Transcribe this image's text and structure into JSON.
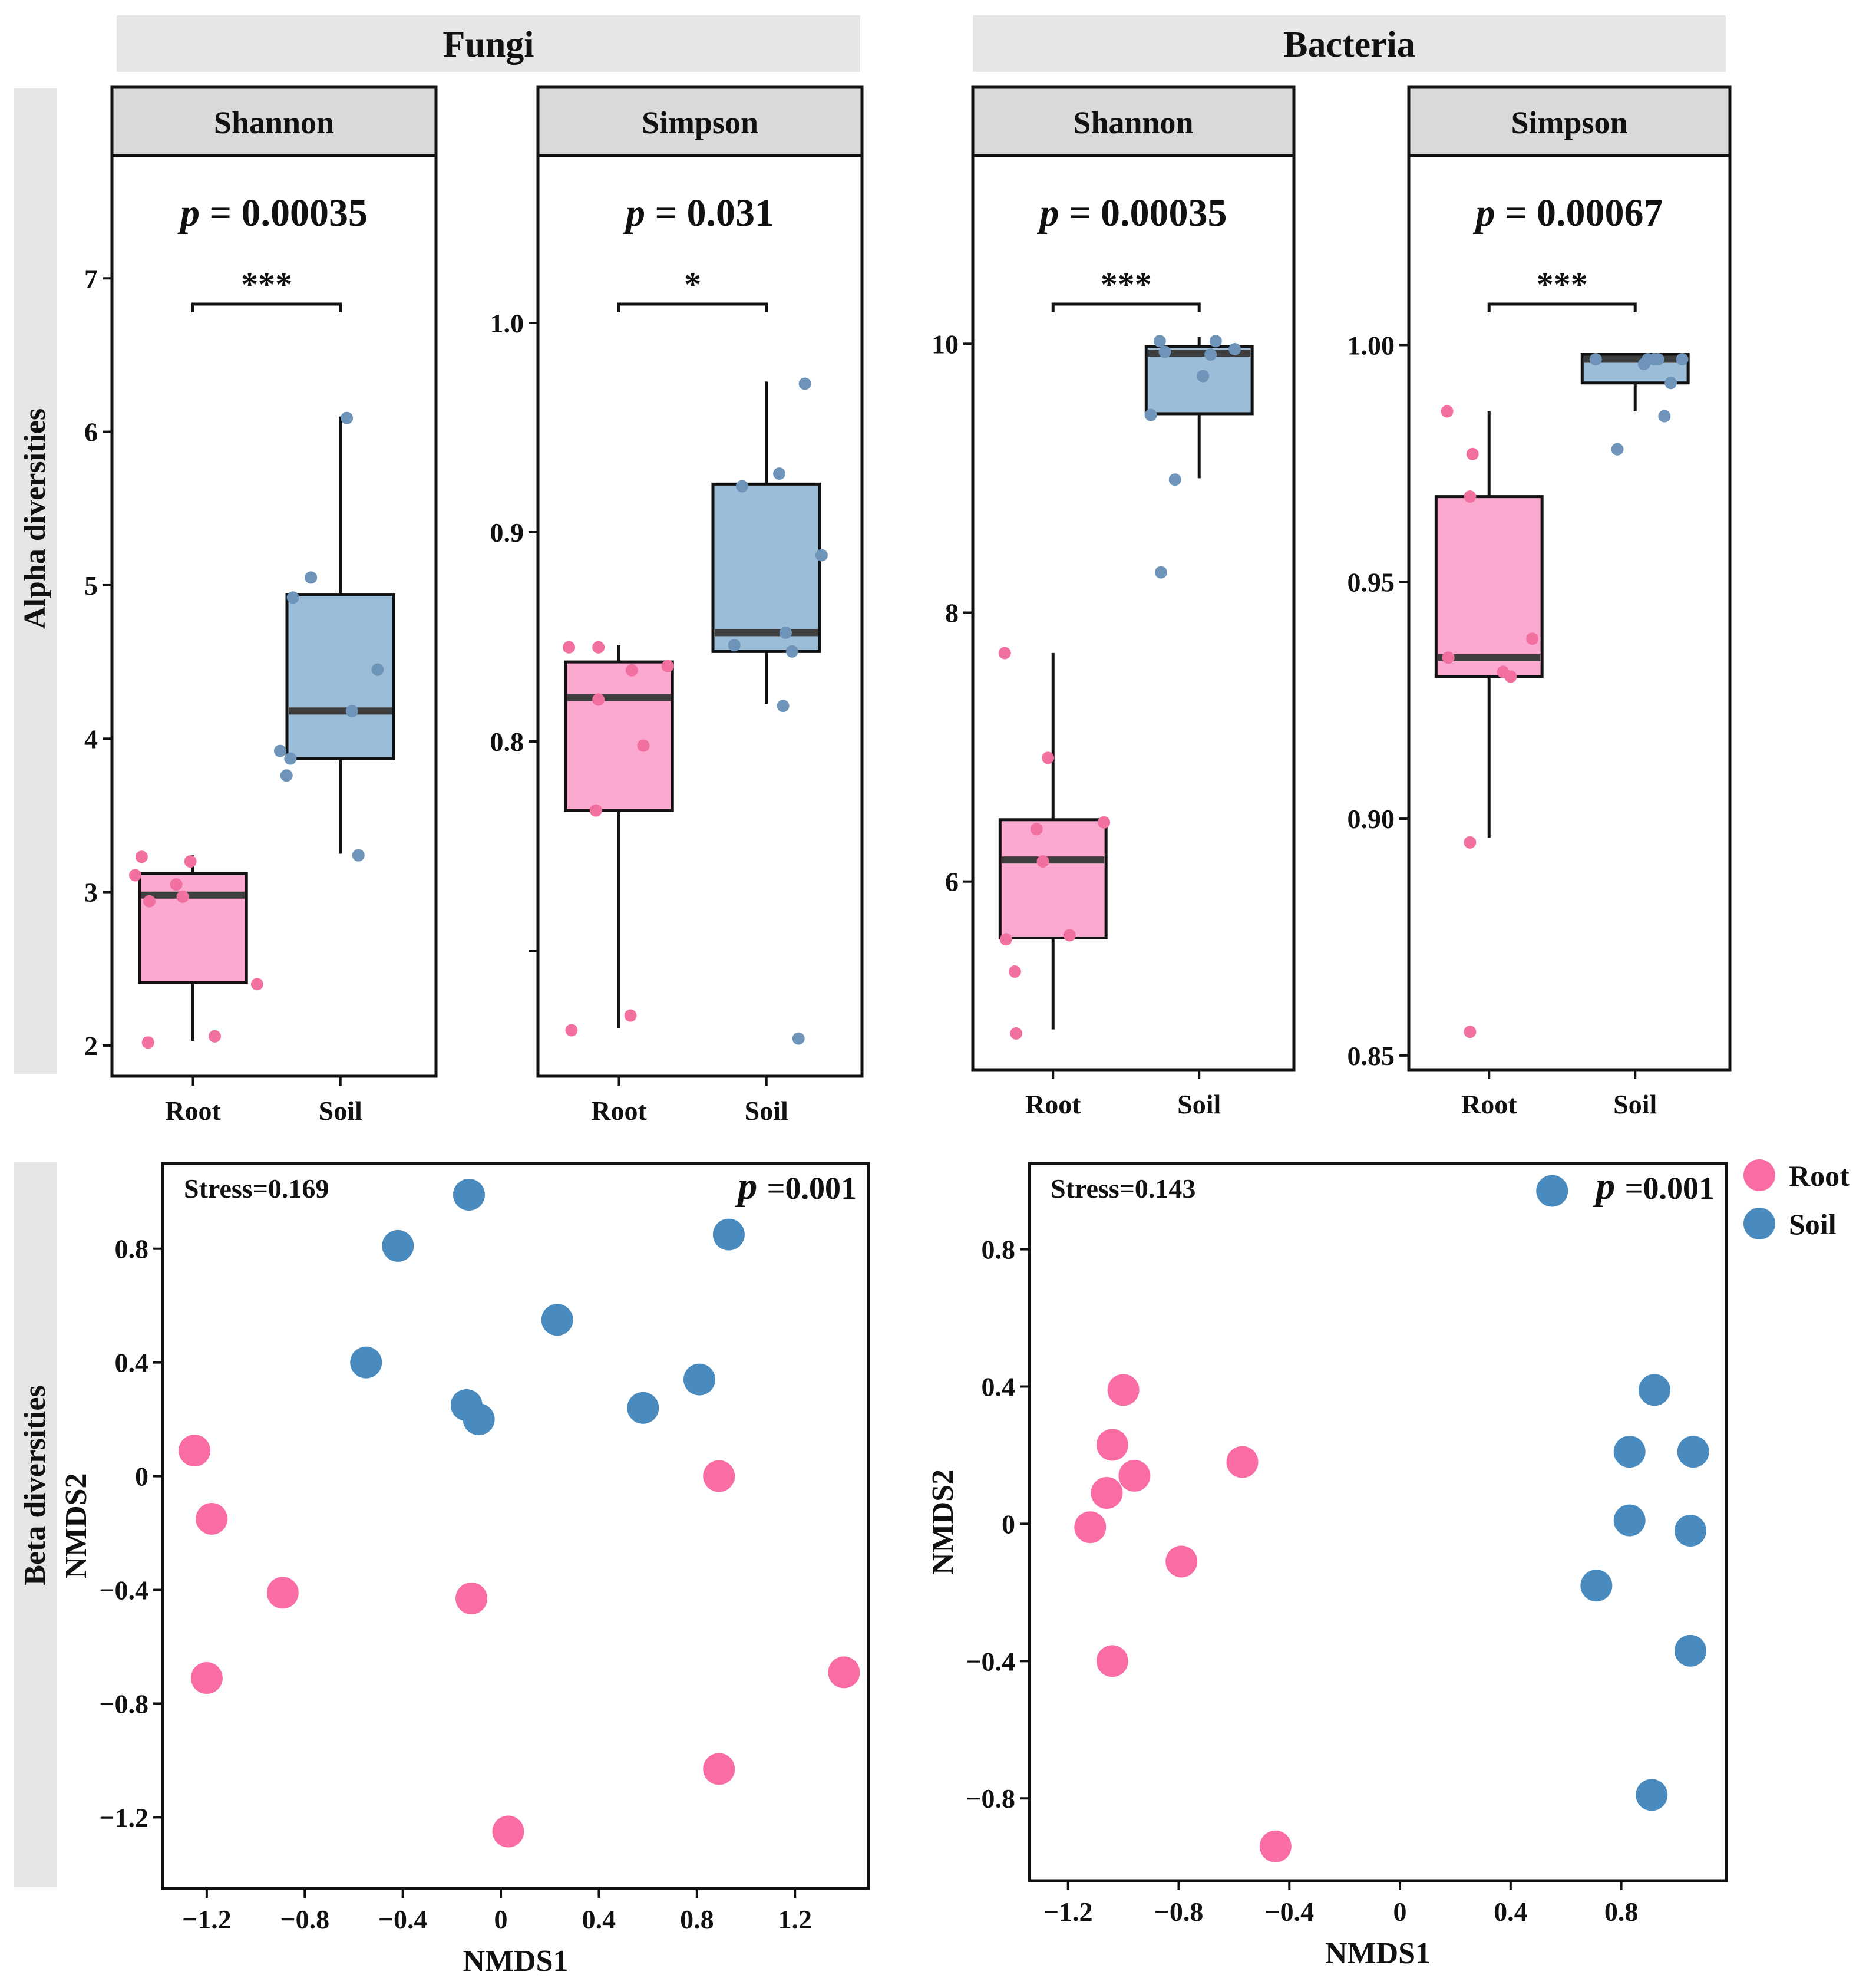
{
  "colors": {
    "root_fill": "#fba9d0",
    "soil_fill": "#9bbdd8",
    "root_point": "#f2709f",
    "soil_point": "#6e95b9",
    "root_nmds": "#f96ca4",
    "soil_nmds": "#4a8bbf",
    "strip_bg": "#e6e6e6",
    "facet_bg": "#d9d9d9",
    "median": "#3e3e3e"
  },
  "groups": {
    "fungi": "Fungi",
    "bacteria": "Bacteria"
  },
  "row_labels": {
    "alpha": "Alpha diversities",
    "beta": "Beta diversities"
  },
  "legend": {
    "root": "Root",
    "soil": "Soil"
  },
  "chart_data": [
    {
      "type": "box",
      "group": "Fungi",
      "facet": "Shannon",
      "pvalue_label": "p",
      "pvalue": "= 0.00035",
      "significance": "***",
      "categories": [
        "Root",
        "Soil"
      ],
      "ylim": [
        1.8,
        7.8
      ],
      "yticks": [
        2,
        3,
        4,
        5,
        6,
        7
      ],
      "yticklabels": [
        "2",
        "3",
        "4",
        "5",
        "6",
        "7"
      ],
      "boxes": [
        {
          "name": "Root",
          "q1": 2.41,
          "median": 2.98,
          "q3": 3.12,
          "whislo": 2.03,
          "whishi": 3.24,
          "points": [
            [
              -0.4,
              3.23
            ],
            [
              -0.45,
              3.11
            ],
            [
              -0.34,
              2.94
            ],
            [
              -0.13,
              3.05
            ],
            [
              -0.08,
              2.97
            ],
            [
              -0.02,
              3.2
            ],
            [
              0.5,
              2.4
            ],
            [
              -0.35,
              2.02
            ],
            [
              0.17,
              2.06
            ]
          ]
        },
        {
          "name": "Soil",
          "q1": 3.87,
          "median": 4.18,
          "q3": 4.94,
          "whislo": 3.25,
          "whishi": 6.1,
          "points": [
            [
              0.05,
              6.09
            ],
            [
              -0.37,
              4.92
            ],
            [
              -0.23,
              5.05
            ],
            [
              0.29,
              4.45
            ],
            [
              0.09,
              4.18
            ],
            [
              -0.47,
              3.92
            ],
            [
              -0.39,
              3.87
            ],
            [
              -0.42,
              3.76
            ],
            [
              0.14,
              3.24
            ]
          ]
        }
      ]
    },
    {
      "type": "box",
      "group": "Fungi",
      "facet": "Simpson",
      "pvalue_label": "p",
      "pvalue": "= 0.031",
      "significance": "*",
      "categories": [
        "Root",
        "Soil"
      ],
      "ylim": [
        0.64,
        1.08
      ],
      "yticks": [
        0.7,
        0.8,
        0.9,
        1.0
      ],
      "yticklabels": [
        "",
        "0.8",
        "0.9",
        "1.0"
      ],
      "boxes": [
        {
          "name": "Root",
          "q1": 0.767,
          "median": 0.821,
          "q3": 0.838,
          "whislo": 0.663,
          "whishi": 0.846,
          "points": [
            [
              -0.39,
              0.845
            ],
            [
              -0.16,
              0.845
            ],
            [
              0.1,
              0.834
            ],
            [
              0.38,
              0.836
            ],
            [
              -0.16,
              0.82
            ],
            [
              0.19,
              0.798
            ],
            [
              -0.18,
              0.767
            ],
            [
              -0.37,
              0.662
            ],
            [
              0.09,
              0.669
            ]
          ]
        },
        {
          "name": "Soil",
          "q1": 0.843,
          "median": 0.852,
          "q3": 0.923,
          "whislo": 0.818,
          "whishi": 0.972,
          "points": [
            [
              0.3,
              0.971
            ],
            [
              0.1,
              0.928
            ],
            [
              -0.19,
              0.922
            ],
            [
              0.43,
              0.889
            ],
            [
              0.15,
              0.852
            ],
            [
              -0.25,
              0.846
            ],
            [
              0.2,
              0.843
            ],
            [
              0.13,
              0.817
            ],
            [
              0.25,
              0.658
            ]
          ]
        }
      ]
    },
    {
      "type": "box",
      "group": "Bacteria",
      "facet": "Shannon",
      "pvalue_label": "p",
      "pvalue": "= 0.00035",
      "significance": "***",
      "categories": [
        "Root",
        "Soil"
      ],
      "ylim": [
        4.6,
        11.4
      ],
      "yticks": [
        6,
        8,
        10
      ],
      "yticklabels": [
        "6",
        "8",
        "10"
      ],
      "boxes": [
        {
          "name": "Root",
          "q1": 5.58,
          "median": 6.16,
          "q3": 6.46,
          "whislo": 4.9,
          "whishi": 7.7,
          "points": [
            [
              -0.38,
              7.7
            ],
            [
              -0.04,
              6.92
            ],
            [
              0.4,
              6.44
            ],
            [
              -0.13,
              6.39
            ],
            [
              -0.08,
              6.15
            ],
            [
              0.13,
              5.6
            ],
            [
              -0.37,
              5.57
            ],
            [
              -0.3,
              5.33
            ],
            [
              -0.29,
              4.87
            ]
          ]
        },
        {
          "name": "Soil",
          "q1": 9.48,
          "median": 9.93,
          "q3": 9.98,
          "whislo": 9.0,
          "whishi": 10.05,
          "points": [
            [
              -0.31,
              10.02
            ],
            [
              0.13,
              10.02
            ],
            [
              0.28,
              9.96
            ],
            [
              -0.27,
              9.94
            ],
            [
              0.09,
              9.92
            ],
            [
              0.03,
              9.76
            ],
            [
              -0.38,
              9.47
            ],
            [
              -0.19,
              8.99
            ],
            [
              -0.3,
              8.3
            ]
          ]
        }
      ]
    },
    {
      "type": "box",
      "group": "Bacteria",
      "facet": "Simpson",
      "pvalue_label": "p",
      "pvalue": "= 0.00067",
      "significance": "***",
      "categories": [
        "Root",
        "Soil"
      ],
      "ylim": [
        0.847,
        1.04
      ],
      "yticks": [
        0.85,
        0.9,
        0.95,
        1.0
      ],
      "yticklabels": [
        "0.85",
        "0.90",
        "0.95",
        "1.00"
      ],
      "boxes": [
        {
          "name": "Root",
          "q1": 0.93,
          "median": 0.934,
          "q3": 0.968,
          "whislo": 0.896,
          "whishi": 0.986,
          "points": [
            [
              -0.33,
              0.986
            ],
            [
              -0.13,
              0.977
            ],
            [
              -0.15,
              0.968
            ],
            [
              -0.32,
              0.934
            ],
            [
              0.34,
              0.938
            ],
            [
              0.11,
              0.931
            ],
            [
              0.17,
              0.93
            ],
            [
              -0.15,
              0.895
            ],
            [
              -0.15,
              0.855
            ]
          ]
        },
        {
          "name": "Soil",
          "q1": 0.992,
          "median": 0.997,
          "q3": 0.998,
          "whislo": 0.986,
          "whishi": 0.998,
          "points": [
            [
              -0.31,
              0.997
            ],
            [
              0.1,
              0.997
            ],
            [
              0.18,
              0.997
            ],
            [
              0.37,
              0.997
            ],
            [
              0.07,
              0.996
            ],
            [
              0.28,
              0.992
            ],
            [
              0.23,
              0.985
            ],
            [
              -0.14,
              0.978
            ],
            [
              0.15,
              0.997
            ]
          ]
        }
      ]
    },
    {
      "type": "scatter",
      "group": "Fungi",
      "title": "",
      "stress": "Stress=0.169",
      "pvalue_label": "p",
      "pvalue": "=0.001",
      "xlabel": "NMDS1",
      "ylabel": "NMDS2",
      "xlim": [
        -1.38,
        1.5
      ],
      "ylim": [
        -1.45,
        1.1
      ],
      "xticks": [
        -1.2,
        -0.8,
        -0.4,
        0,
        0.4,
        0.8,
        1.2
      ],
      "xticklabels": [
        "−1.2",
        "−0.8",
        "−0.4",
        "0",
        "0.4",
        "0.8",
        "1.2"
      ],
      "yticks": [
        -1.2,
        -0.8,
        -0.4,
        0,
        0.4,
        0.8
      ],
      "yticklabels": [
        "−1.2",
        "−0.8",
        "−0.4",
        "0",
        "0.4",
        "0.8"
      ],
      "series": [
        {
          "name": "Root",
          "points": [
            [
              -1.25,
              0.09
            ],
            [
              -1.18,
              -0.15
            ],
            [
              -0.89,
              -0.41
            ],
            [
              -1.2,
              -0.71
            ],
            [
              -0.12,
              -0.43
            ],
            [
              0.03,
              -1.25
            ],
            [
              0.89,
              0.0
            ],
            [
              0.89,
              -1.03
            ],
            [
              1.4,
              -0.69
            ]
          ]
        },
        {
          "name": "Soil",
          "points": [
            [
              -0.13,
              0.99
            ],
            [
              -0.42,
              0.81
            ],
            [
              0.93,
              0.85
            ],
            [
              0.23,
              0.55
            ],
            [
              -0.55,
              0.4
            ],
            [
              0.81,
              0.34
            ],
            [
              -0.14,
              0.25
            ],
            [
              -0.09,
              0.2
            ],
            [
              0.58,
              0.24
            ]
          ]
        }
      ]
    },
    {
      "type": "scatter",
      "group": "Bacteria",
      "title": "",
      "stress": "Stress=0.143",
      "pvalue_label": "p",
      "pvalue": "=0.001",
      "xlabel": "NMDS1",
      "ylabel": "NMDS2",
      "xlim": [
        -1.34,
        1.18
      ],
      "ylim": [
        -1.04,
        1.05
      ],
      "xticks": [
        -1.2,
        -0.8,
        -0.4,
        0,
        0.4,
        0.8
      ],
      "xticklabels": [
        "−1.2",
        "−0.8",
        "−0.4",
        "0",
        "0.4",
        "0.8"
      ],
      "yticks": [
        -0.8,
        -0.4,
        0,
        0.4,
        0.8
      ],
      "yticklabels": [
        "−0.8",
        "−0.4",
        "0",
        "0.4",
        "0.8"
      ],
      "series": [
        {
          "name": "Root",
          "points": [
            [
              -1.0,
              0.39
            ],
            [
              -1.04,
              0.23
            ],
            [
              -0.96,
              0.14
            ],
            [
              -1.06,
              0.09
            ],
            [
              -1.12,
              -0.01
            ],
            [
              -0.57,
              0.18
            ],
            [
              -0.79,
              -0.11
            ],
            [
              -1.04,
              -0.4
            ],
            [
              -0.45,
              -0.94
            ]
          ]
        },
        {
          "name": "Soil",
          "points": [
            [
              0.55,
              0.97
            ],
            [
              0.92,
              0.39
            ],
            [
              0.83,
              0.21
            ],
            [
              1.06,
              0.21
            ],
            [
              0.83,
              0.01
            ],
            [
              1.05,
              -0.02
            ],
            [
              0.71,
              -0.18
            ],
            [
              1.05,
              -0.37
            ],
            [
              0.91,
              -0.79
            ]
          ]
        }
      ]
    }
  ]
}
